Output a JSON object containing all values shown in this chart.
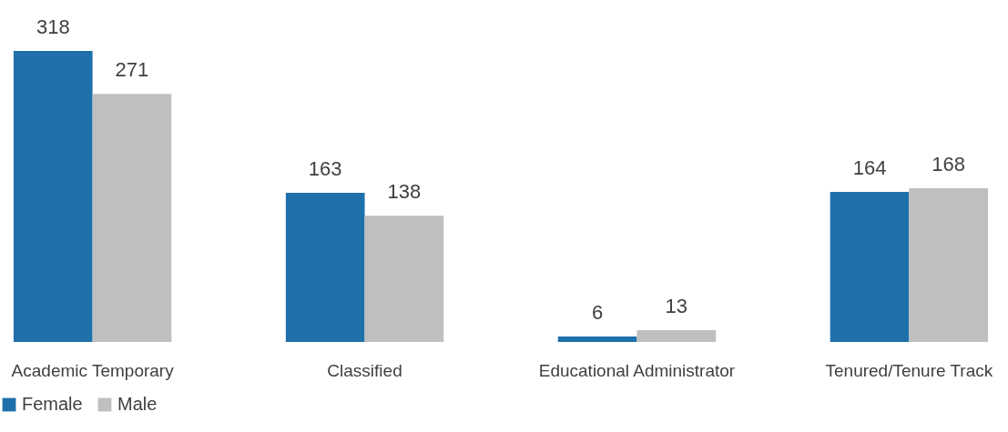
{
  "chart_data": {
    "type": "bar",
    "categories": [
      "Academic Temporary",
      "Classified",
      "Educational Administrator",
      "Tenured/Tenure Track"
    ],
    "series": [
      {
        "name": "Female",
        "color": "#1f70aa",
        "values": [
          318,
          163,
          6,
          164
        ]
      },
      {
        "name": "Male",
        "color": "#bfbfbf",
        "values": [
          271,
          138,
          13,
          168
        ]
      }
    ],
    "data_labels": true,
    "legend": "bottom",
    "grid": false
  }
}
